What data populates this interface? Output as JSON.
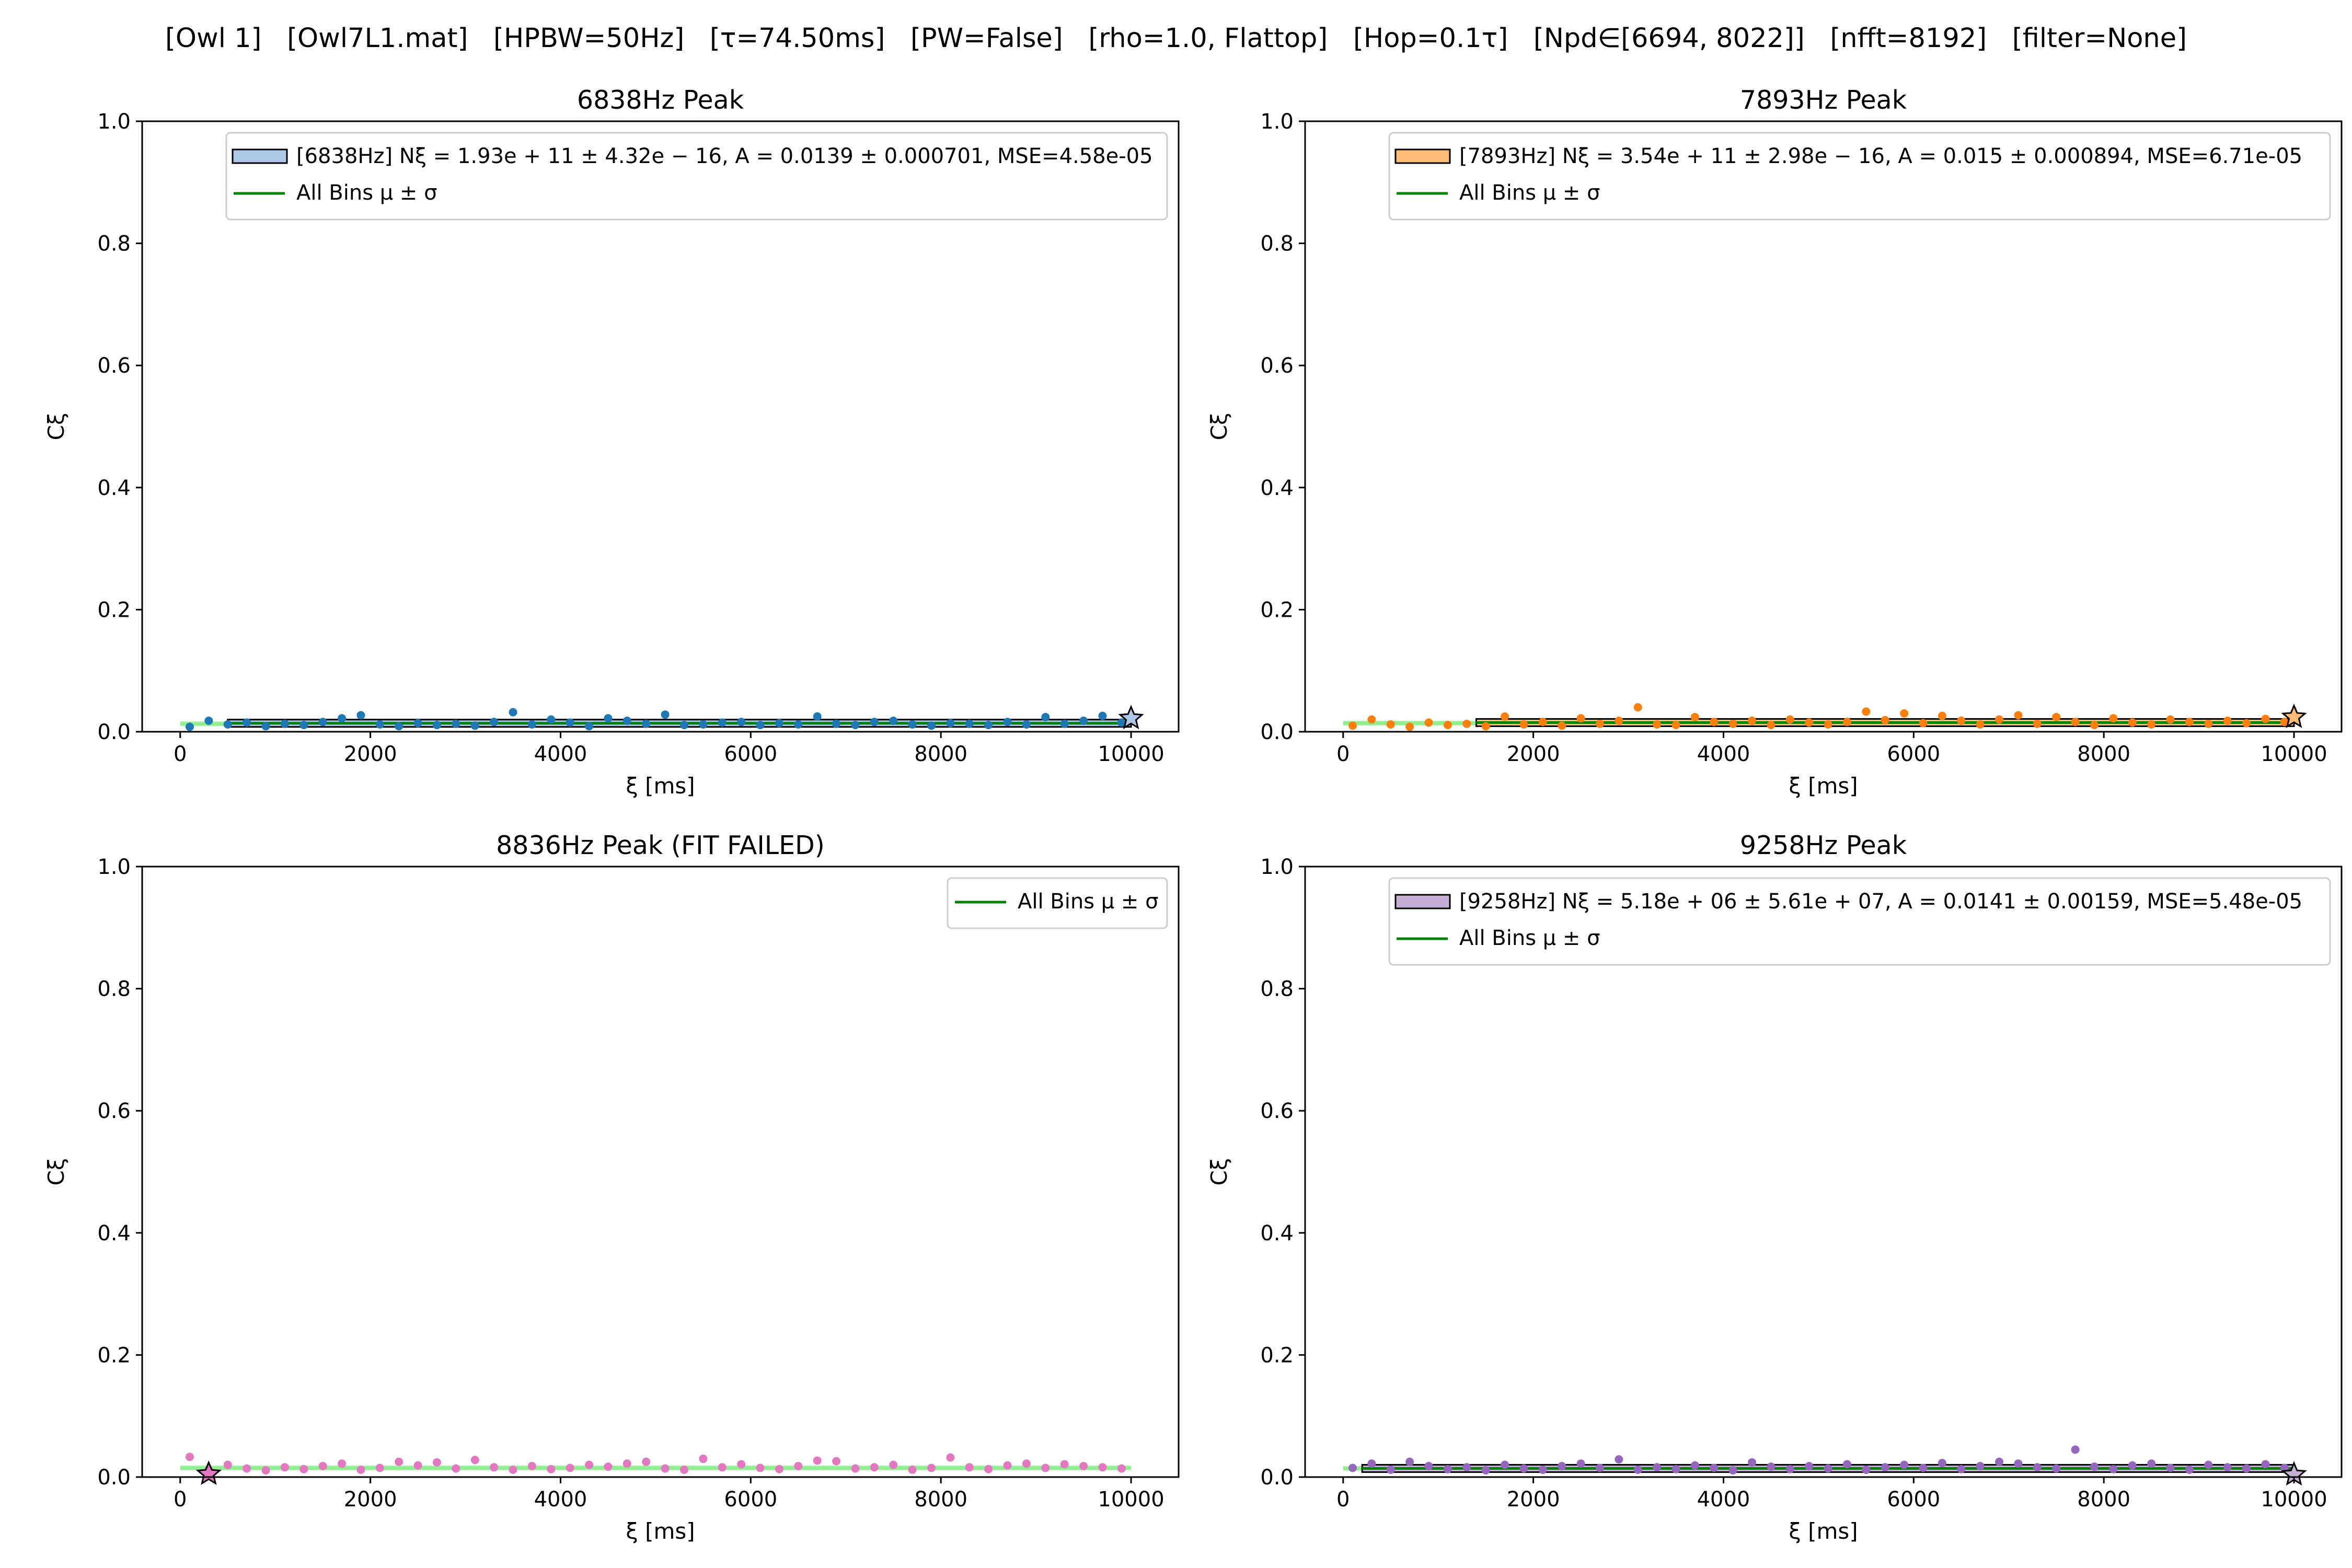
{
  "suptitle": "[Owl 1]   [Owl7L1.mat]   [HPBW=50Hz]   [τ=74.50ms]   [PW=False]   [rho=1.0, Flattop]   [Hop=0.1τ]   [Npd∈[6694, 8022]]   [nfft=8192]   [filter=None]",
  "colors": {
    "fit_line": "#008000",
    "mean_band": "#90ee90"
  },
  "chart_data": [
    {
      "type": "scatter",
      "title": "6838Hz Peak",
      "xlabel": "ξ [ms]",
      "ylabel": "Cξ",
      "xlim": [
        -400,
        10500
      ],
      "ylim": [
        0,
        1.0
      ],
      "xticks": [
        0,
        2000,
        4000,
        6000,
        8000,
        10000
      ],
      "yticks": [
        0.0,
        0.2,
        0.4,
        0.6,
        0.8,
        1.0
      ],
      "series_color": "#1f77b4",
      "patch_color": "#aec7e8",
      "legend": [
        "[6838Hz] Nξ = 1.93e + 11 ± 4.32e − 16, A = 0.0139 ± 0.000701, MSE=4.58e-05",
        "All Bins μ ± σ"
      ],
      "fit_level": 0.0139,
      "fit_start": 500,
      "mean_level": 0.013,
      "star_x": 10000,
      "star_y": 0.022,
      "x": [
        100,
        300,
        500,
        700,
        900,
        1100,
        1300,
        1500,
        1700,
        1900,
        2100,
        2300,
        2500,
        2700,
        2900,
        3100,
        3300,
        3500,
        3700,
        3900,
        4100,
        4300,
        4500,
        4700,
        4900,
        5100,
        5300,
        5500,
        5700,
        5900,
        6100,
        6300,
        6500,
        6700,
        6900,
        7100,
        7300,
        7500,
        7700,
        7900,
        8100,
        8300,
        8500,
        8700,
        8900,
        9100,
        9300,
        9500,
        9700,
        9900
      ],
      "y": [
        0.008,
        0.018,
        0.012,
        0.015,
        0.009,
        0.013,
        0.011,
        0.016,
        0.022,
        0.027,
        0.012,
        0.009,
        0.014,
        0.011,
        0.013,
        0.01,
        0.016,
        0.032,
        0.012,
        0.02,
        0.015,
        0.009,
        0.022,
        0.018,
        0.013,
        0.028,
        0.011,
        0.012,
        0.015,
        0.016,
        0.011,
        0.014,
        0.012,
        0.025,
        0.013,
        0.011,
        0.016,
        0.018,
        0.012,
        0.01,
        0.014,
        0.013,
        0.011,
        0.016,
        0.012,
        0.024,
        0.013,
        0.018,
        0.026,
        0.015
      ]
    },
    {
      "type": "scatter",
      "title": "7893Hz Peak",
      "xlabel": "ξ [ms]",
      "ylabel": "Cξ",
      "xlim": [
        -400,
        10500
      ],
      "ylim": [
        0,
        1.0
      ],
      "xticks": [
        0,
        2000,
        4000,
        6000,
        8000,
        10000
      ],
      "yticks": [
        0.0,
        0.2,
        0.4,
        0.6,
        0.8,
        1.0
      ],
      "series_color": "#ff7f0e",
      "patch_color": "#ffbb78",
      "legend": [
        "[7893Hz] Nξ = 3.54e + 11 ± 2.98e − 16, A = 0.015 ± 0.000894, MSE=6.71e-05",
        "All Bins μ ± σ"
      ],
      "fit_level": 0.015,
      "fit_start": 1400,
      "mean_level": 0.014,
      "star_x": 10000,
      "star_y": 0.024,
      "x": [
        100,
        300,
        500,
        700,
        900,
        1100,
        1300,
        1500,
        1700,
        1900,
        2100,
        2300,
        2500,
        2700,
        2900,
        3100,
        3300,
        3500,
        3700,
        3900,
        4100,
        4300,
        4500,
        4700,
        4900,
        5100,
        5300,
        5500,
        5700,
        5900,
        6100,
        6300,
        6500,
        6700,
        6900,
        7100,
        7300,
        7500,
        7700,
        7900,
        8100,
        8300,
        8500,
        8700,
        8900,
        9100,
        9300,
        9500,
        9700,
        9900
      ],
      "y": [
        0.01,
        0.02,
        0.012,
        0.008,
        0.015,
        0.011,
        0.013,
        0.009,
        0.025,
        0.012,
        0.016,
        0.01,
        0.022,
        0.013,
        0.018,
        0.04,
        0.012,
        0.011,
        0.024,
        0.016,
        0.013,
        0.018,
        0.011,
        0.02,
        0.015,
        0.012,
        0.016,
        0.033,
        0.019,
        0.03,
        0.014,
        0.026,
        0.018,
        0.012,
        0.02,
        0.027,
        0.013,
        0.024,
        0.016,
        0.011,
        0.022,
        0.015,
        0.012,
        0.02,
        0.016,
        0.013,
        0.018,
        0.014,
        0.021,
        0.016
      ]
    },
    {
      "type": "scatter",
      "title": "8836Hz Peak (FIT FAILED)",
      "xlabel": "ξ [ms]",
      "ylabel": "Cξ",
      "xlim": [
        -400,
        10500
      ],
      "ylim": [
        0,
        1.0
      ],
      "xticks": [
        0,
        2000,
        4000,
        6000,
        8000,
        10000
      ],
      "yticks": [
        0.0,
        0.2,
        0.4,
        0.6,
        0.8,
        1.0
      ],
      "series_color": "#e377c2",
      "patch_color": "",
      "legend": [
        "All Bins μ ± σ"
      ],
      "fit_level": null,
      "fit_start": null,
      "mean_level": 0.015,
      "star_x": 300,
      "star_y": 0.005,
      "x": [
        100,
        300,
        500,
        700,
        900,
        1100,
        1300,
        1500,
        1700,
        1900,
        2100,
        2300,
        2500,
        2700,
        2900,
        3100,
        3300,
        3500,
        3700,
        3900,
        4100,
        4300,
        4500,
        4700,
        4900,
        5100,
        5300,
        5500,
        5700,
        5900,
        6100,
        6300,
        6500,
        6700,
        6900,
        7100,
        7300,
        7500,
        7700,
        7900,
        8100,
        8300,
        8500,
        8700,
        8900,
        9100,
        9300,
        9500,
        9700,
        9900
      ],
      "y": [
        0.033,
        0.012,
        0.02,
        0.014,
        0.011,
        0.016,
        0.013,
        0.018,
        0.022,
        0.012,
        0.015,
        0.025,
        0.019,
        0.024,
        0.014,
        0.028,
        0.016,
        0.012,
        0.018,
        0.013,
        0.015,
        0.02,
        0.017,
        0.022,
        0.025,
        0.014,
        0.012,
        0.03,
        0.016,
        0.021,
        0.015,
        0.013,
        0.018,
        0.027,
        0.026,
        0.014,
        0.016,
        0.02,
        0.012,
        0.015,
        0.032,
        0.016,
        0.013,
        0.019,
        0.022,
        0.015,
        0.021,
        0.018,
        0.016,
        0.014
      ]
    },
    {
      "type": "scatter",
      "title": "9258Hz Peak",
      "xlabel": "ξ [ms]",
      "ylabel": "Cξ",
      "xlim": [
        -400,
        10500
      ],
      "ylim": [
        0,
        1.0
      ],
      "xticks": [
        0,
        2000,
        4000,
        6000,
        8000,
        10000
      ],
      "yticks": [
        0.0,
        0.2,
        0.4,
        0.6,
        0.8,
        1.0
      ],
      "series_color": "#9467bd",
      "patch_color": "#c5b0d5",
      "legend": [
        "[9258Hz] Nξ = 5.18e + 06 ± 5.61e + 07, A = 0.0141 ± 0.00159, MSE=5.48e-05",
        "All Bins μ ± σ"
      ],
      "fit_level": 0.0141,
      "fit_start": 200,
      "mean_level": 0.014,
      "star_x": 10000,
      "star_y": 0.004,
      "x": [
        100,
        300,
        500,
        700,
        900,
        1100,
        1300,
        1500,
        1700,
        1900,
        2100,
        2300,
        2500,
        2700,
        2900,
        3100,
        3300,
        3500,
        3700,
        3900,
        4100,
        4300,
        4500,
        4700,
        4900,
        5100,
        5300,
        5500,
        5700,
        5900,
        6100,
        6300,
        6500,
        6700,
        6900,
        7100,
        7300,
        7500,
        7700,
        7900,
        8100,
        8300,
        8500,
        8700,
        8900,
        9100,
        9300,
        9500,
        9700,
        9900
      ],
      "y": [
        0.015,
        0.022,
        0.012,
        0.025,
        0.018,
        0.013,
        0.016,
        0.011,
        0.02,
        0.014,
        0.012,
        0.018,
        0.022,
        0.015,
        0.029,
        0.012,
        0.016,
        0.013,
        0.019,
        0.015,
        0.011,
        0.024,
        0.017,
        0.013,
        0.018,
        0.014,
        0.021,
        0.012,
        0.016,
        0.02,
        0.015,
        0.023,
        0.013,
        0.018,
        0.025,
        0.022,
        0.016,
        0.014,
        0.045,
        0.017,
        0.013,
        0.019,
        0.022,
        0.015,
        0.012,
        0.02,
        0.016,
        0.014,
        0.021,
        0.015
      ]
    }
  ]
}
